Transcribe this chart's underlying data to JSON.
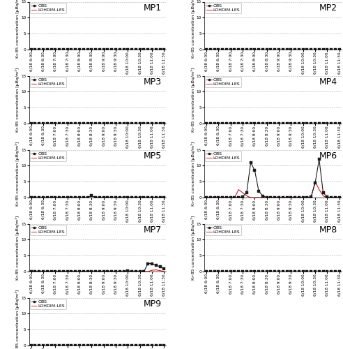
{
  "time_labels": [
    "6/18 6:00",
    "6/18 6:30",
    "6/18 7:00",
    "6/18 7:30",
    "6/18 8:00",
    "6/18 8:30",
    "6/18 9:00",
    "6/18 9:30",
    "6/18 10:00",
    "6/18 10:30",
    "6/18 11:00",
    "6/18 11:30"
  ],
  "ylim": [
    0,
    15
  ],
  "yticks": [
    0,
    5,
    10,
    15
  ],
  "ylabel": "Kr-85 concentration [μBq/m³]",
  "legend_obs": "OBS",
  "legend_les": "LOHDIM-LES",
  "mp_labels": [
    "MP1",
    "MP2",
    "MP3",
    "MP4",
    "MP5",
    "MP6",
    "MP7",
    "MP8",
    "MP9"
  ],
  "bg_color": "#ffffff",
  "obs_color": "#1a1a1a",
  "les_color": "#cc0000",
  "grid_color": "#999999",
  "marker": "s",
  "markersize": 2.5,
  "linewidth_obs": 0.8,
  "linewidth_les": 0.7,
  "mp_fontsize": 9,
  "tick_fontsize": 4.2,
  "label_fontsize": 4.5,
  "legend_fontsize": 4.5
}
